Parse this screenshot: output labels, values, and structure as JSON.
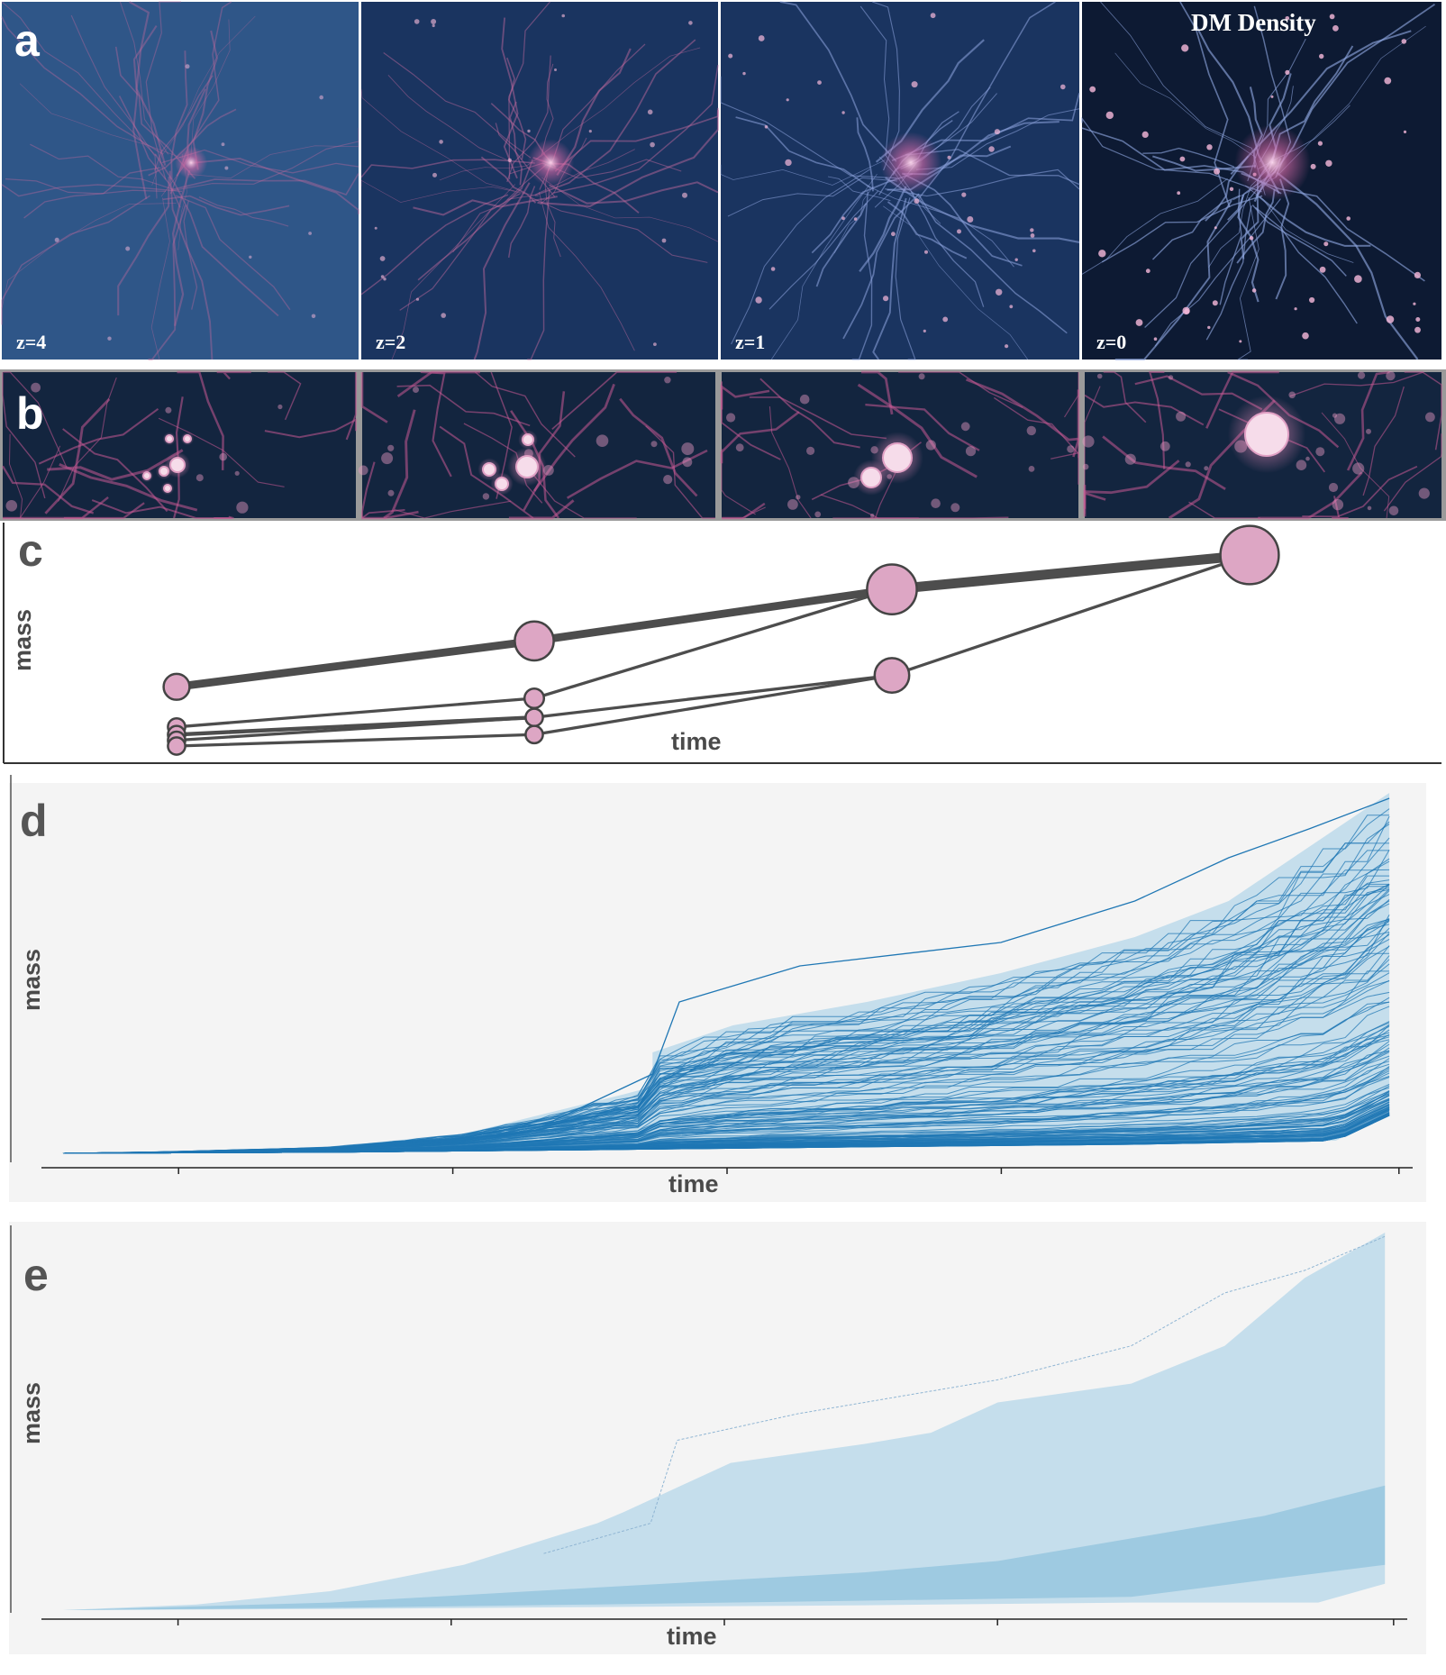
{
  "panels": {
    "a": {
      "letter": "a",
      "title": "DM Density",
      "redshifts": [
        "z=4",
        "z=2",
        "z=1",
        "z=0"
      ]
    },
    "b": {
      "letter": "b"
    },
    "c": {
      "letter": "c",
      "ylabel": "mass",
      "xlabel": "time"
    },
    "d": {
      "letter": "d",
      "ylabel": "mass",
      "xlabel": "time"
    },
    "e": {
      "letter": "e",
      "ylabel": "mass",
      "xlabel": "time"
    }
  },
  "colors": {
    "pink": "#dda6c4",
    "dark_line": "#4d4d4d",
    "blue": "#1f77b4",
    "blue_light": "#c5deec",
    "blue_mid": "#9ecae1",
    "panel_bg": "#f4f4f4"
  },
  "chart_data": [
    {
      "type": "merger-tree",
      "panel": "c",
      "xlabel": "time",
      "ylabel": "mass",
      "nodes": [
        {
          "id": "t0a",
          "t": 0,
          "m": 0.31,
          "size": 1.2
        },
        {
          "id": "t0b",
          "t": 0,
          "m": 0.1,
          "size": 0.8
        },
        {
          "id": "t0c",
          "t": 0,
          "m": 0.06,
          "size": 0.8
        },
        {
          "id": "t0d",
          "t": 0,
          "m": 0.03,
          "size": 0.8
        },
        {
          "id": "t0e",
          "t": 0,
          "m": 0.0,
          "size": 0.8
        },
        {
          "id": "t1a",
          "t": 1,
          "m": 0.55,
          "size": 1.8
        },
        {
          "id": "t1b",
          "t": 1,
          "m": 0.25,
          "size": 0.9
        },
        {
          "id": "t1c",
          "t": 1,
          "m": 0.15,
          "size": 0.8
        },
        {
          "id": "t1d",
          "t": 1,
          "m": 0.06,
          "size": 0.8
        },
        {
          "id": "t2a",
          "t": 2,
          "m": 0.82,
          "size": 2.3
        },
        {
          "id": "t2b",
          "t": 2,
          "m": 0.37,
          "size": 1.6
        },
        {
          "id": "t3a",
          "t": 3,
          "m": 1.0,
          "size": 2.7
        }
      ],
      "edges": [
        {
          "from": "t0a",
          "to": "t1a",
          "weight": 4
        },
        {
          "from": "t0b",
          "to": "t1b",
          "weight": 1.5
        },
        {
          "from": "t0c",
          "to": "t1c",
          "weight": 2
        },
        {
          "from": "t0d",
          "to": "t1c",
          "weight": 1.5
        },
        {
          "from": "t0e",
          "to": "t1d",
          "weight": 1.5
        },
        {
          "from": "t1a",
          "to": "t2a",
          "weight": 4
        },
        {
          "from": "t1b",
          "to": "t2a",
          "weight": 1.5
        },
        {
          "from": "t1c",
          "to": "t2b",
          "weight": 1.5
        },
        {
          "from": "t1d",
          "to": "t2b",
          "weight": 1.5
        },
        {
          "from": "t2a",
          "to": "t3a",
          "weight": 5
        },
        {
          "from": "t2b",
          "to": "t3a",
          "weight": 1.5
        }
      ]
    },
    {
      "type": "line",
      "panel": "d",
      "xlabel": "time",
      "ylabel": "mass",
      "description_series": "many mass accretion histories",
      "n_lines": 140,
      "x_range": [
        0,
        1
      ],
      "y_range": [
        0,
        1
      ],
      "envelope_upper": [
        [
          0,
          0
        ],
        [
          0.07,
          0.004
        ],
        [
          0.2,
          0.018
        ],
        [
          0.3,
          0.055
        ],
        [
          0.42,
          0.165
        ],
        [
          0.44,
          0.185
        ],
        [
          0.44,
          0.28
        ],
        [
          0.5,
          0.355
        ],
        [
          0.6,
          0.42
        ],
        [
          0.7,
          0.5
        ],
        [
          0.8,
          0.6
        ],
        [
          0.87,
          0.7
        ],
        [
          0.93,
          0.85
        ],
        [
          0.99,
          1.0
        ]
      ],
      "envelope_lower": [
        [
          0,
          0
        ],
        [
          0.2,
          0.003
        ],
        [
          0.4,
          0.01
        ],
        [
          0.6,
          0.018
        ],
        [
          0.8,
          0.025
        ],
        [
          0.95,
          0.035
        ],
        [
          0.99,
          0.105
        ]
      ],
      "outlier_line": [
        [
          0.36,
          0.08
        ],
        [
          0.44,
          0.22
        ],
        [
          0.46,
          0.42
        ],
        [
          0.55,
          0.52
        ],
        [
          0.7,
          0.585
        ],
        [
          0.8,
          0.7
        ],
        [
          0.87,
          0.82
        ],
        [
          0.93,
          0.9
        ],
        [
          0.99,
          0.985
        ]
      ]
    },
    {
      "type": "area",
      "panel": "e",
      "xlabel": "time",
      "ylabel": "mass",
      "x_range": [
        0,
        1
      ],
      "y_range": [
        0,
        1
      ],
      "outer_upper": [
        [
          0,
          0
        ],
        [
          0.1,
          0.015
        ],
        [
          0.2,
          0.05
        ],
        [
          0.3,
          0.12
        ],
        [
          0.4,
          0.23
        ],
        [
          0.42,
          0.26
        ],
        [
          0.5,
          0.39
        ],
        [
          0.6,
          0.44
        ],
        [
          0.65,
          0.47
        ],
        [
          0.7,
          0.55
        ],
        [
          0.8,
          0.6
        ],
        [
          0.87,
          0.7
        ],
        [
          0.93,
          0.88
        ],
        [
          0.99,
          1.0
        ]
      ],
      "outer_lower": [
        [
          0,
          0
        ],
        [
          0.2,
          0.003
        ],
        [
          0.4,
          0.008
        ],
        [
          0.6,
          0.013
        ],
        [
          0.8,
          0.02
        ],
        [
          0.94,
          0.02
        ],
        [
          0.99,
          0.07
        ]
      ],
      "inner_upper": [
        [
          0,
          0
        ],
        [
          0.2,
          0.02
        ],
        [
          0.4,
          0.06
        ],
        [
          0.6,
          0.1
        ],
        [
          0.7,
          0.13
        ],
        [
          0.8,
          0.19
        ],
        [
          0.9,
          0.25
        ],
        [
          0.99,
          0.33
        ]
      ],
      "inner_lower": [
        [
          0,
          0
        ],
        [
          0.2,
          0.006
        ],
        [
          0.4,
          0.015
        ],
        [
          0.6,
          0.025
        ],
        [
          0.8,
          0.035
        ],
        [
          0.99,
          0.12
        ]
      ],
      "outlier_line": [
        [
          0.36,
          0.15
        ],
        [
          0.44,
          0.23
        ],
        [
          0.46,
          0.45
        ],
        [
          0.55,
          0.52
        ],
        [
          0.7,
          0.61
        ],
        [
          0.8,
          0.7
        ],
        [
          0.87,
          0.84
        ],
        [
          0.93,
          0.9
        ],
        [
          0.99,
          0.99
        ]
      ]
    }
  ]
}
